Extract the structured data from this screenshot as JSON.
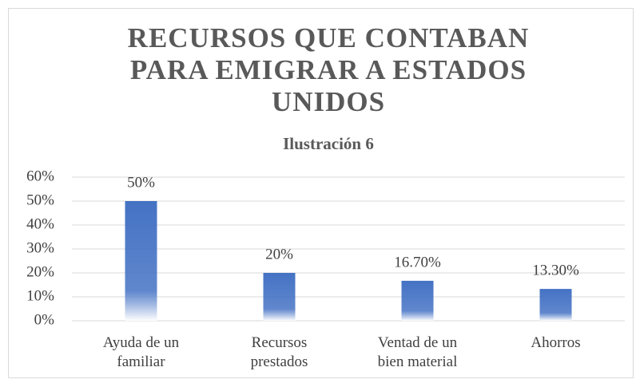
{
  "chart_data": {
    "type": "bar",
    "title": "RECURSOS QUE CONTABAN PARA EMIGRAR A ESTADOS UNIDOS",
    "subtitle": "Ilustración 6",
    "categories": [
      "Ayuda de un familiar",
      "Recursos prestados",
      "Ventad de un bien material",
      "Ahorros"
    ],
    "values": [
      50,
      20,
      16.7,
      13.3
    ],
    "value_labels": [
      "50%",
      "20%",
      "16.70%",
      "13.30%"
    ],
    "color": "#4472c4",
    "ylim": [
      0,
      60
    ],
    "yticks": [
      {
        "value": 0,
        "label": "0%"
      },
      {
        "value": 10,
        "label": "10%"
      },
      {
        "value": 20,
        "label": "20%"
      },
      {
        "value": 30,
        "label": "30%"
      },
      {
        "value": 40,
        "label": "40%"
      },
      {
        "value": 50,
        "label": "50%"
      },
      {
        "value": 60,
        "label": "60%"
      }
    ],
    "grid": true
  }
}
